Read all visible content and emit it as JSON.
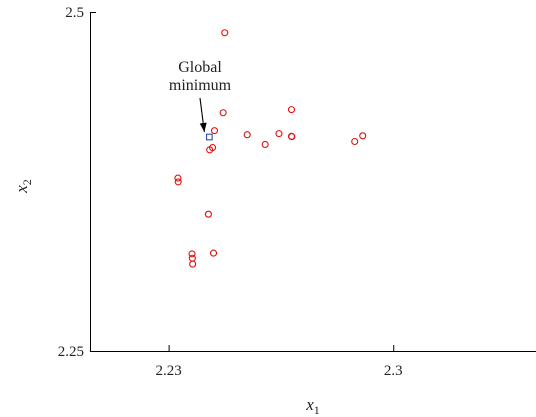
{
  "chart_data": {
    "type": "scatter",
    "title": "",
    "xlabel": {
      "base": "x",
      "sub": "1"
    },
    "ylabel": {
      "base": "x",
      "sub": "2"
    },
    "xlim": [
      2.2055,
      2.3445
    ],
    "ylim": [
      2.25,
      2.5
    ],
    "x_ticks": [
      2.23,
      2.3
    ],
    "x_tick_labels": [
      "2.23",
      "2.3"
    ],
    "y_ticks": [
      2.25,
      2.5
    ],
    "y_tick_labels": [
      "2.25",
      "2.5"
    ],
    "grid": false,
    "series": [
      {
        "marker": "circle",
        "color": "#e01010",
        "points": [
          [
            2.2475,
            2.4847
          ],
          [
            2.247,
            2.4257
          ],
          [
            2.2683,
            2.428
          ],
          [
            2.2644,
            2.4103
          ],
          [
            2.2683,
            2.4083
          ],
          [
            2.2684,
            2.4081
          ],
          [
            2.2545,
            2.4095
          ],
          [
            2.2601,
            2.4023
          ],
          [
            2.288,
            2.4045
          ],
          [
            2.2905,
            2.4087
          ],
          [
            2.2428,
            2.3983
          ],
          [
            2.2437,
            2.4
          ],
          [
            2.2443,
            2.4125
          ],
          [
            2.2329,
            2.3775
          ],
          [
            2.233,
            2.3747
          ],
          [
            2.2424,
            2.3509
          ],
          [
            2.244,
            2.3222
          ],
          [
            2.2373,
            2.3216
          ],
          [
            2.2374,
            2.3184
          ],
          [
            2.2375,
            2.3141
          ]
        ]
      },
      {
        "marker": "square",
        "color": "#2a4db0",
        "points": [
          [
            2.2427,
            2.4078
          ]
        ]
      }
    ],
    "annotations": [
      {
        "lines": [
          "Global",
          "minimum"
        ],
        "target": [
          2.2427,
          2.4078
        ]
      }
    ]
  }
}
